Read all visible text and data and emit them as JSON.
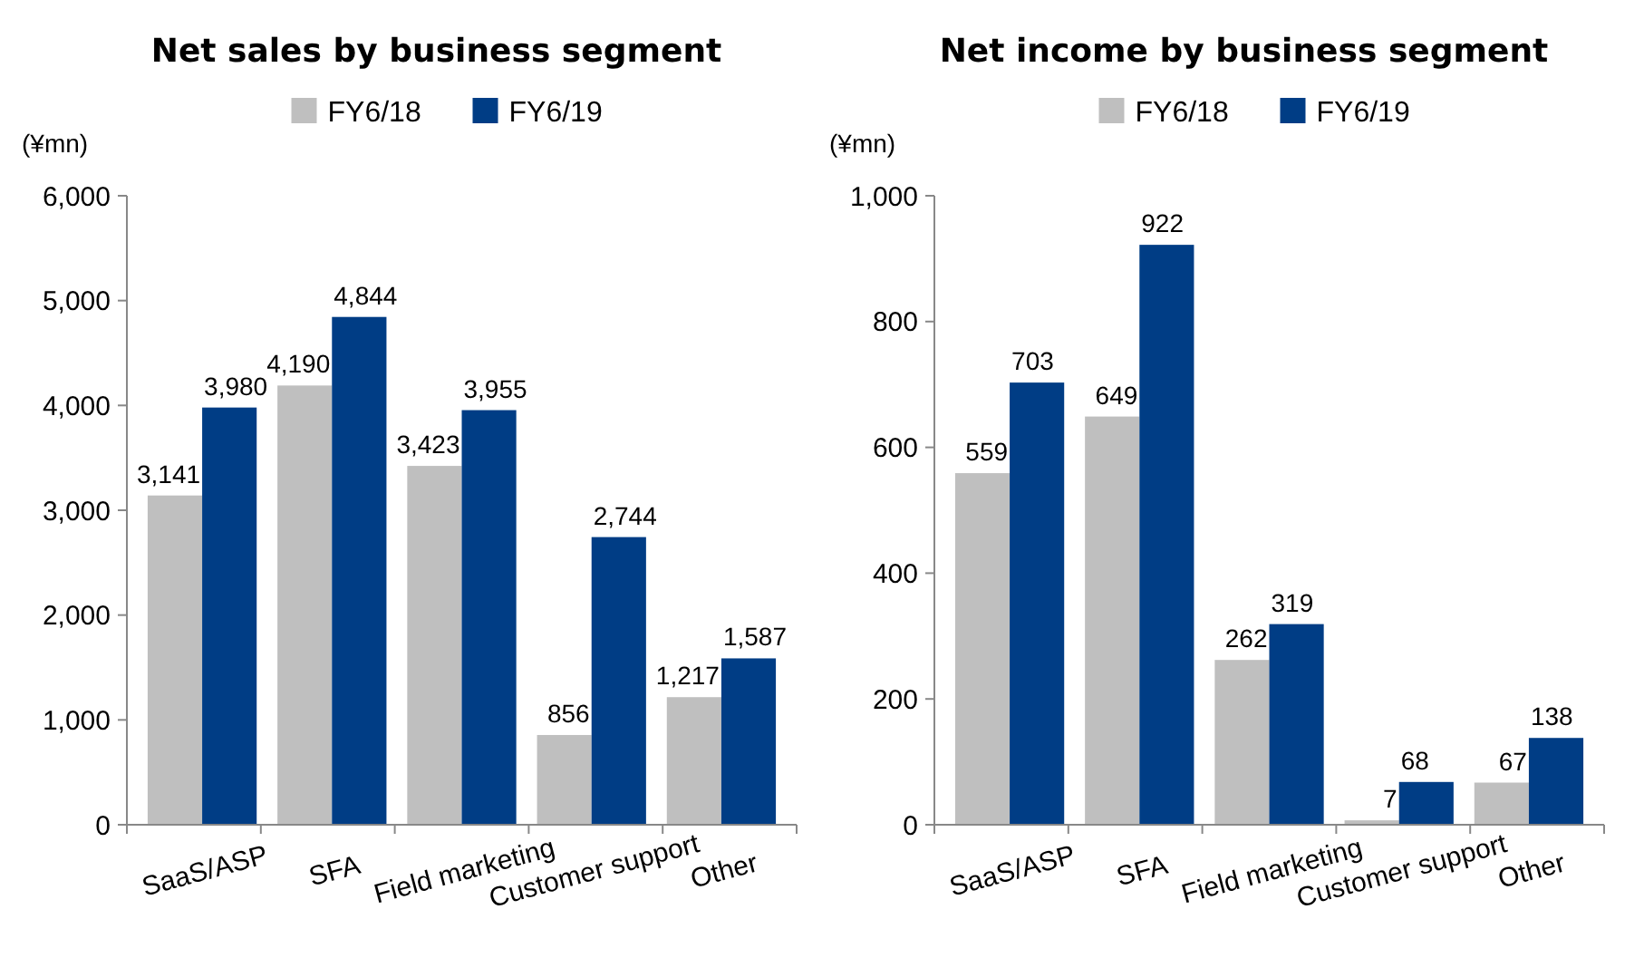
{
  "chart_data": [
    {
      "type": "bar",
      "title": "Net sales by business segment",
      "ylabel": "(¥mn)",
      "categories": [
        "SaaS/ASP",
        "SFA",
        "Field marketing",
        "Customer support",
        "Other"
      ],
      "series": [
        {
          "name": "FY6/18",
          "color": "#bfbfbf",
          "values": [
            3141,
            4190,
            3423,
            856,
            1217
          ],
          "value_labels": [
            "3,141",
            "4,190",
            "3,423",
            "856",
            "1,217"
          ]
        },
        {
          "name": "FY6/19",
          "color": "#003d85",
          "values": [
            3980,
            4844,
            3955,
            2744,
            1587
          ],
          "value_labels": [
            "3,980",
            "4,844",
            "3,955",
            "2,744",
            "1,587"
          ]
        }
      ],
      "ylim": [
        0,
        6000
      ],
      "yticks": [
        {
          "value": 0,
          "label": "0"
        },
        {
          "value": 1000,
          "label": "1,000"
        },
        {
          "value": 2000,
          "label": "2,000"
        },
        {
          "value": 3000,
          "label": "3,000"
        },
        {
          "value": 4000,
          "label": "4,000"
        },
        {
          "value": 5000,
          "label": "5,000"
        },
        {
          "value": 6000,
          "label": "6,000"
        }
      ],
      "data_labels": true,
      "legend": "top",
      "grid": false
    },
    {
      "type": "bar",
      "title": "Net income by business segment",
      "ylabel": "(¥mn)",
      "categories": [
        "SaaS/ASP",
        "SFA",
        "Field marketing",
        "Customer support",
        "Other"
      ],
      "series": [
        {
          "name": "FY6/18",
          "color": "#bfbfbf",
          "values": [
            559,
            649,
            262,
            7,
            67
          ]
        },
        {
          "name": "FY6/19",
          "color": "#003d85",
          "values": [
            703,
            922,
            319,
            68,
            138
          ]
        }
      ],
      "ylim": [
        0,
        1000
      ],
      "yticks": [
        {
          "value": 0,
          "label": "0"
        },
        {
          "value": 200,
          "label": "200"
        },
        {
          "value": 400,
          "label": "400"
        },
        {
          "value": 600,
          "label": "600"
        },
        {
          "value": 800,
          "label": "800"
        },
        {
          "value": 1000,
          "label": "1,000"
        }
      ],
      "data_labels": true,
      "legend": "top",
      "grid": false
    }
  ]
}
